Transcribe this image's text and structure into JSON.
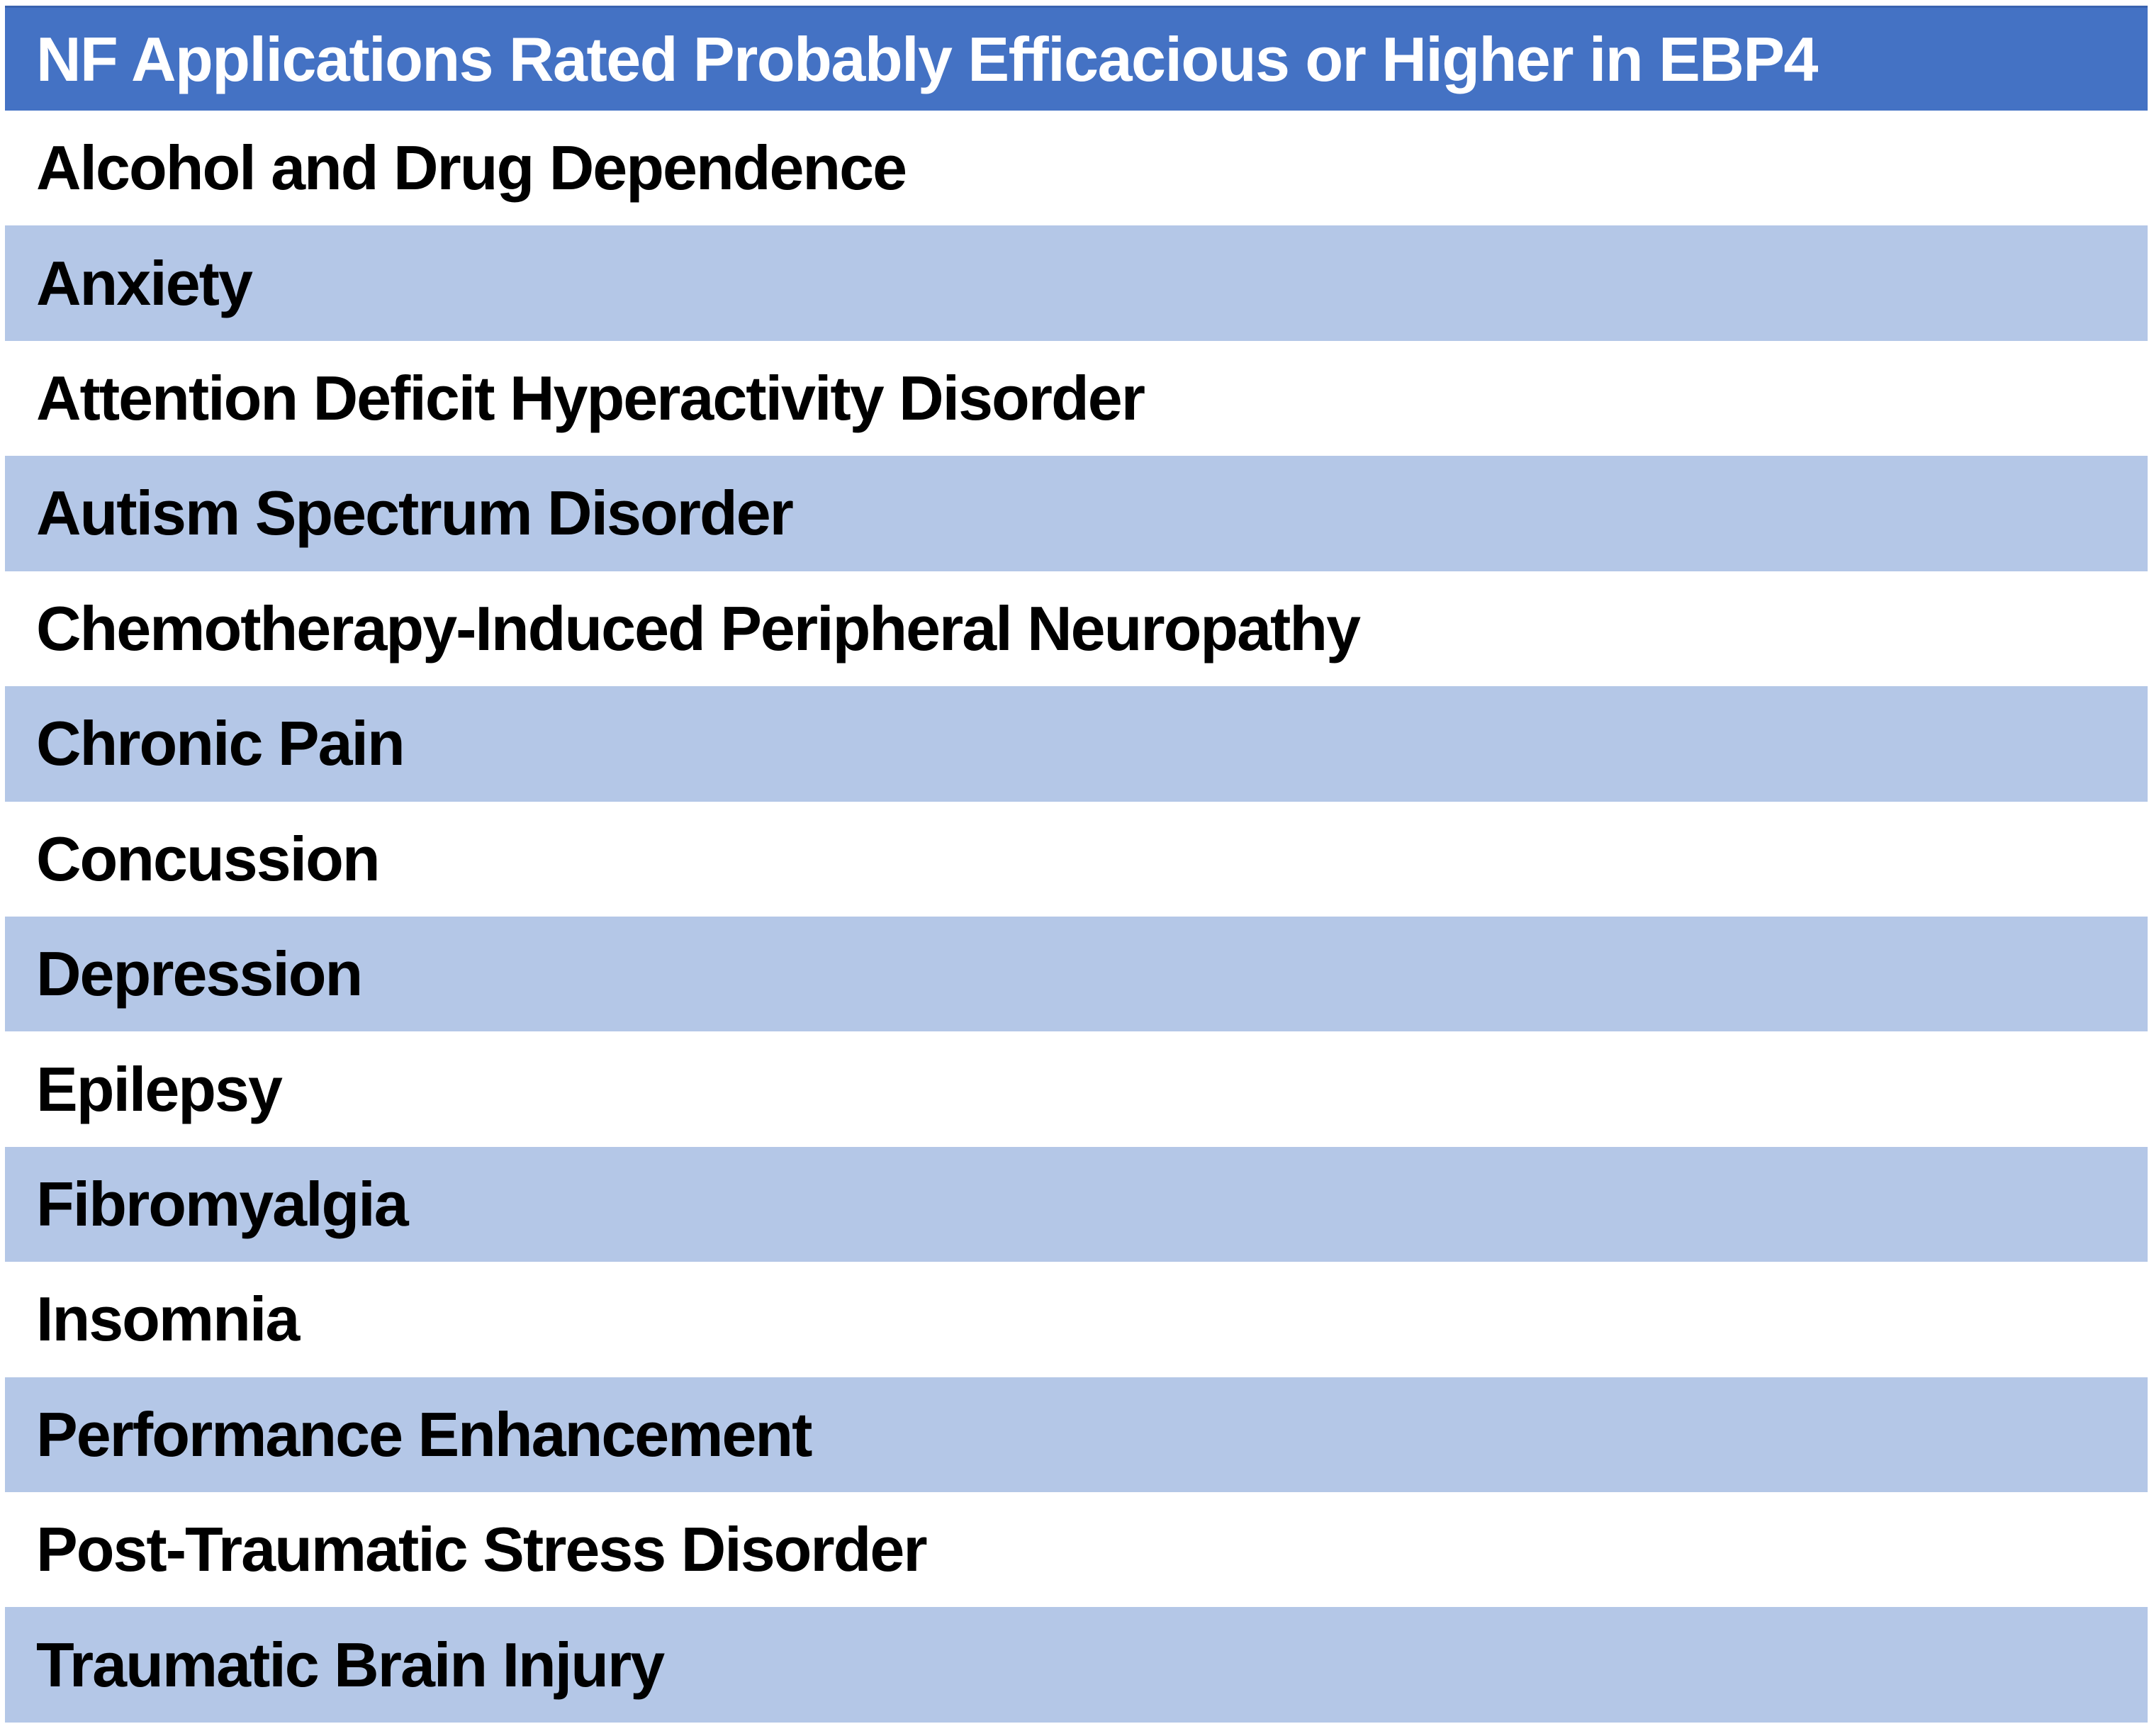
{
  "table": {
    "title": "NF Applications Rated Probably Efficacious or Higher in EBP4",
    "rows": [
      "Alcohol and Drug Dependence",
      "Anxiety",
      "Attention Deficit Hyperactivity Disorder",
      "Autism Spectrum Disorder",
      "Chemotherapy-Induced Peripheral Neuropathy",
      "Chronic Pain",
      "Concussion",
      "Depression",
      "Epilepsy",
      "Fibromyalgia",
      "Insomnia",
      "Performance Enhancement",
      "Post-Traumatic Stress Disorder",
      "Traumatic Brain Injury"
    ]
  },
  "colors": {
    "header_bg": "#4472C4",
    "header_border": "#3A63AF",
    "header_text": "#FFFFFF",
    "row_shaded_bg": "#B4C7E7",
    "row_plain_bg": "#FFFFFF",
    "row_text": "#000000"
  }
}
